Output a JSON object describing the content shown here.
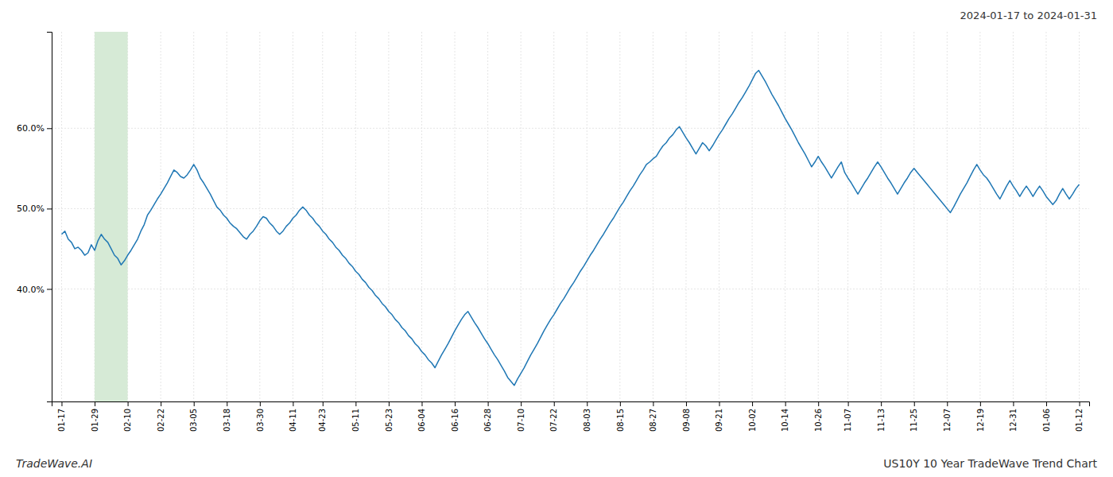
{
  "chart_data": {
    "type": "line",
    "title": "US10Y 10 Year TradeWave Trend Chart",
    "subtitle": "2024-01-17 to 2024-01-31",
    "annotations": [
      "TradeWave.AI"
    ],
    "color": "#1f77b4",
    "grid": true,
    "ylim": [
      0.26,
      0.72
    ],
    "yticks": [
      {
        "value": 0.4,
        "label": "40.0%"
      },
      {
        "value": 0.5,
        "label": "50.0%"
      },
      {
        "value": 0.6,
        "label": "60.0%"
      }
    ],
    "highlight": {
      "start": "01-29",
      "end": "02-10",
      "color": "#d6ead6"
    },
    "categories": [
      "01-17",
      null,
      null,
      null,
      null,
      null,
      null,
      null,
      null,
      null,
      "01-29",
      null,
      null,
      null,
      null,
      null,
      null,
      null,
      null,
      null,
      "02-10",
      null,
      null,
      null,
      null,
      null,
      null,
      null,
      null,
      null,
      "02-22",
      null,
      null,
      null,
      null,
      null,
      null,
      null,
      null,
      null,
      "03-05",
      null,
      null,
      null,
      null,
      null,
      null,
      null,
      null,
      null,
      "03-18",
      null,
      null,
      null,
      null,
      null,
      null,
      null,
      null,
      null,
      "03-30",
      null,
      null,
      null,
      null,
      null,
      null,
      null,
      null,
      null,
      "04-11",
      null,
      null,
      null,
      null,
      null,
      null,
      null,
      null,
      "04-23",
      null,
      null,
      null,
      null,
      null,
      null,
      null,
      null,
      null,
      "05-11",
      null,
      null,
      null,
      null,
      null,
      null,
      null,
      null,
      null,
      "05-23",
      null,
      null,
      null,
      null,
      null,
      null,
      null,
      null,
      null,
      "06-04",
      null,
      null,
      null,
      null,
      null,
      null,
      null,
      null,
      null,
      "06-16",
      null,
      null,
      null,
      null,
      null,
      null,
      null,
      null,
      null,
      "06-28",
      null,
      null,
      null,
      null,
      null,
      null,
      null,
      null,
      null,
      "07-10",
      null,
      null,
      null,
      null,
      null,
      null,
      null,
      null,
      null,
      "07-22",
      null,
      null,
      null,
      null,
      null,
      null,
      null,
      null,
      null,
      "08-03",
      null,
      null,
      null,
      null,
      null,
      null,
      null,
      null,
      null,
      "08-15",
      null,
      null,
      null,
      null,
      null,
      null,
      null,
      null,
      null,
      "08-27",
      null,
      null,
      null,
      null,
      null,
      null,
      null,
      null,
      null,
      "09-08",
      null,
      null,
      null,
      null,
      null,
      null,
      null,
      null,
      null,
      "09-21",
      null,
      null,
      null,
      null,
      null,
      null,
      null,
      null,
      null,
      "10-02",
      null,
      null,
      null,
      null,
      null,
      null,
      null,
      null,
      null,
      "10-14",
      null,
      null,
      null,
      null,
      null,
      null,
      null,
      null,
      null,
      "10-26",
      null,
      null,
      null,
      null,
      null,
      null,
      null,
      null,
      "11-07",
      null,
      null,
      null,
      null,
      null,
      null,
      null,
      null,
      null,
      "11-13",
      null,
      null,
      null,
      null,
      null,
      null,
      null,
      null,
      null,
      "11-25",
      null,
      null,
      null,
      null,
      null,
      null,
      null,
      null,
      null,
      "12-07",
      null,
      null,
      null,
      null,
      null,
      null,
      null,
      null,
      null,
      "12-19",
      null,
      null,
      null,
      null,
      null,
      null,
      null,
      null,
      null,
      "12-31",
      null,
      null,
      null,
      null,
      null,
      null,
      null,
      null,
      null,
      "01-06",
      null,
      null,
      null,
      null,
      null,
      null,
      null,
      null,
      null,
      "01-12"
    ],
    "values": [
      0.468,
      0.472,
      0.462,
      0.458,
      0.45,
      0.452,
      0.448,
      0.442,
      0.445,
      0.455,
      0.448,
      0.46,
      0.468,
      0.462,
      0.458,
      0.45,
      0.442,
      0.438,
      0.43,
      0.435,
      0.442,
      0.448,
      0.455,
      0.462,
      0.472,
      0.48,
      0.492,
      0.498,
      0.505,
      0.512,
      0.518,
      0.525,
      0.532,
      0.54,
      0.548,
      0.545,
      0.54,
      0.538,
      0.542,
      0.548,
      0.555,
      0.548,
      0.538,
      0.532,
      0.525,
      0.518,
      0.51,
      0.502,
      0.498,
      0.492,
      0.488,
      0.482,
      0.478,
      0.475,
      0.47,
      0.465,
      0.462,
      0.468,
      0.472,
      0.478,
      0.485,
      0.49,
      0.488,
      0.482,
      0.478,
      0.472,
      0.468,
      0.472,
      0.478,
      0.482,
      0.488,
      0.492,
      0.498,
      0.502,
      0.498,
      0.492,
      0.488,
      0.482,
      0.478,
      0.472,
      0.468,
      0.462,
      0.458,
      0.452,
      0.448,
      0.442,
      0.438,
      0.432,
      0.428,
      0.422,
      0.418,
      0.412,
      0.408,
      0.402,
      0.398,
      0.392,
      0.388,
      0.382,
      0.378,
      0.372,
      0.368,
      0.362,
      0.358,
      0.352,
      0.348,
      0.342,
      0.338,
      0.332,
      0.328,
      0.322,
      0.318,
      0.312,
      0.308,
      0.302,
      0.31,
      0.318,
      0.325,
      0.332,
      0.34,
      0.348,
      0.355,
      0.362,
      0.368,
      0.372,
      0.365,
      0.358,
      0.352,
      0.345,
      0.338,
      0.332,
      0.325,
      0.318,
      0.312,
      0.305,
      0.298,
      0.29,
      0.285,
      0.28,
      0.288,
      0.295,
      0.302,
      0.31,
      0.318,
      0.325,
      0.332,
      0.34,
      0.348,
      0.355,
      0.362,
      0.368,
      0.375,
      0.382,
      0.388,
      0.395,
      0.402,
      0.408,
      0.415,
      0.422,
      0.428,
      0.435,
      0.442,
      0.448,
      0.455,
      0.462,
      0.468,
      0.475,
      0.482,
      0.488,
      0.495,
      0.502,
      0.508,
      0.515,
      0.522,
      0.528,
      0.535,
      0.542,
      0.548,
      0.555,
      0.558,
      0.562,
      0.565,
      0.572,
      0.578,
      0.582,
      0.588,
      0.592,
      0.598,
      0.602,
      0.595,
      0.588,
      0.582,
      0.575,
      0.568,
      0.575,
      0.582,
      0.578,
      0.572,
      0.578,
      0.585,
      0.592,
      0.598,
      0.605,
      0.612,
      0.618,
      0.625,
      0.632,
      0.638,
      0.645,
      0.652,
      0.66,
      0.668,
      0.672,
      0.665,
      0.658,
      0.65,
      0.642,
      0.635,
      0.628,
      0.62,
      0.612,
      0.605,
      0.598,
      0.59,
      0.582,
      0.575,
      0.568,
      0.56,
      0.552,
      0.558,
      0.565,
      0.558,
      0.552,
      0.545,
      0.538,
      0.545,
      0.552,
      0.558,
      0.545,
      0.538,
      0.532,
      0.525,
      0.518,
      0.525,
      0.532,
      0.538,
      0.545,
      0.552,
      0.558,
      0.552,
      0.545,
      0.538,
      0.532,
      0.525,
      0.518,
      0.525,
      0.532,
      0.538,
      0.545,
      0.55,
      0.545,
      0.54,
      0.535,
      0.53,
      0.525,
      0.52,
      0.515,
      0.51,
      0.505,
      0.5,
      0.495,
      0.502,
      0.51,
      0.518,
      0.525,
      0.532,
      0.54,
      0.548,
      0.555,
      0.548,
      0.542,
      0.538,
      0.532,
      0.525,
      0.518,
      0.512,
      0.52,
      0.528,
      0.535,
      0.528,
      0.522,
      0.515,
      0.522,
      0.528,
      0.522,
      0.515,
      0.522,
      0.528,
      0.522,
      0.515,
      0.51,
      0.505,
      0.51,
      0.518,
      0.525,
      0.518,
      0.512,
      0.518,
      0.525,
      0.53
    ]
  }
}
